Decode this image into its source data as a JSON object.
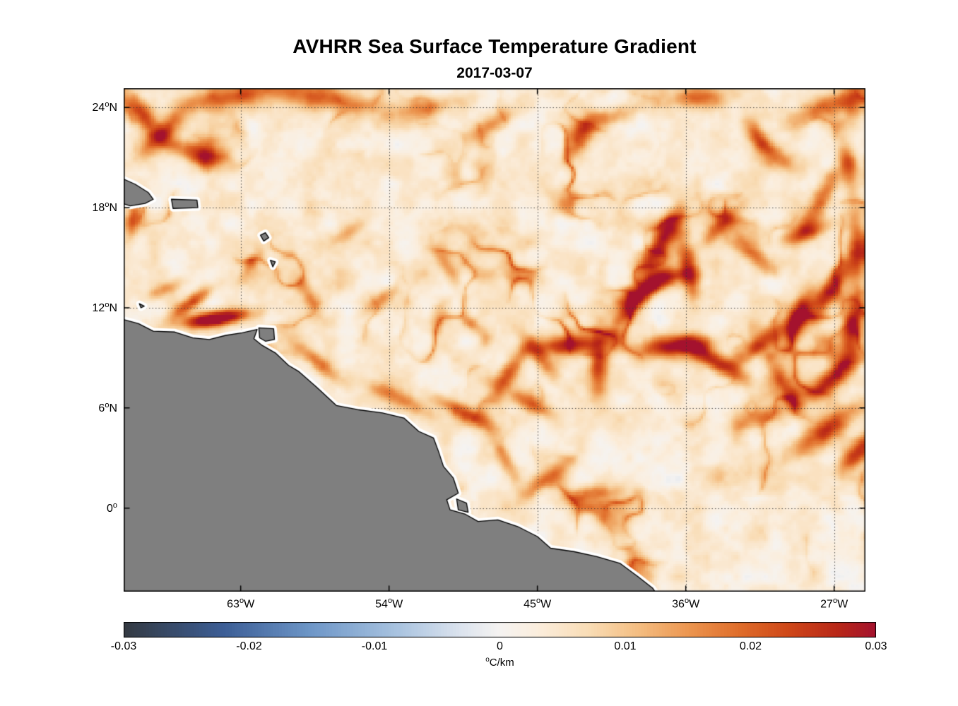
{
  "chart_data": {
    "type": "heatmap",
    "title": "AVHRR Sea Surface Temperature Gradient",
    "subtitle": "2017-03-07",
    "units": "°C/km",
    "value_range": [
      -0.03,
      0.03
    ],
    "lon_range_deg_east": [
      -70.1,
      -25.1
    ],
    "lat_range_deg_north": [
      -5.0,
      25.15
    ],
    "deg_symbol": "o",
    "grid_style": "dotted",
    "x_ticks": [
      {
        "lon": -63,
        "num": "63",
        "dir": "W"
      },
      {
        "lon": -54,
        "num": "54",
        "dir": "W"
      },
      {
        "lon": -45,
        "num": "45",
        "dir": "W"
      },
      {
        "lon": -36,
        "num": "36",
        "dir": "W"
      },
      {
        "lon": -27,
        "num": "27",
        "dir": "W"
      }
    ],
    "y_ticks": [
      {
        "lat": 24,
        "num": "24",
        "dir": "N"
      },
      {
        "lat": 18,
        "num": "18",
        "dir": "N"
      },
      {
        "lat": 12,
        "num": "12",
        "dir": "N"
      },
      {
        "lat": 6,
        "num": "6",
        "dir": "N"
      },
      {
        "lat": 0,
        "num": "0",
        "dir": ""
      }
    ],
    "colormap_stops": [
      [
        -0.03,
        "#343a42"
      ],
      [
        -0.022,
        "#3c5e96"
      ],
      [
        -0.015,
        "#6e97c8"
      ],
      [
        -0.008,
        "#aac4e0"
      ],
      [
        -0.003,
        "#dde4ee"
      ],
      [
        0.0,
        "#f5f3f1"
      ],
      [
        0.003,
        "#fbeedd"
      ],
      [
        0.007,
        "#f9ddb6"
      ],
      [
        0.011,
        "#f4be82"
      ],
      [
        0.015,
        "#ec9650"
      ],
      [
        0.019,
        "#e06e2b"
      ],
      [
        0.023,
        "#cf4718"
      ],
      [
        0.027,
        "#b82718"
      ],
      [
        0.03,
        "#a4122e"
      ]
    ],
    "background_field": {
      "base": 0.0035,
      "mottle_freq": 0.85,
      "mottle_amp": 0.011,
      "ridge_freq": 0.5,
      "ridge_amp": 0.018,
      "mask_freq": 0.28,
      "mask_lo": 0.45,
      "mask_gain": 2.5
    },
    "filaments": [
      [
        -69.0,
        23.6,
        130,
        1.2,
        0.45,
        0.022
      ],
      [
        -67.8,
        22.4,
        45,
        1.5,
        0.4,
        0.018
      ],
      [
        -65.6,
        21.2,
        160,
        1.6,
        0.4,
        0.015
      ],
      [
        -63.5,
        24.7,
        10,
        2.0,
        0.5,
        0.018
      ],
      [
        -58.0,
        24.6,
        170,
        2.2,
        0.5,
        0.017
      ],
      [
        -51.5,
        24.0,
        10,
        1.5,
        0.4,
        0.011
      ],
      [
        -47.8,
        23.0,
        35,
        1.2,
        0.38,
        0.013
      ],
      [
        -42.4,
        22.3,
        60,
        1.0,
        0.45,
        0.018
      ],
      [
        -40.6,
        23.4,
        20,
        1.2,
        0.4,
        0.013
      ],
      [
        -35.3,
        24.6,
        0,
        1.3,
        0.45,
        0.016
      ],
      [
        -31.6,
        22.1,
        120,
        1.2,
        0.35,
        0.012
      ],
      [
        -26.8,
        24.3,
        20,
        1.8,
        0.5,
        0.018
      ],
      [
        -69.6,
        17.2,
        80,
        1.0,
        0.32,
        0.013
      ],
      [
        -67.6,
        13.1,
        25,
        0.9,
        0.28,
        0.012
      ],
      [
        -66.0,
        12.3,
        35,
        1.1,
        0.3,
        0.02
      ],
      [
        -64.4,
        11.35,
        8,
        1.4,
        0.32,
        0.034
      ],
      [
        -62.5,
        14.5,
        60,
        0.9,
        0.28,
        0.008
      ],
      [
        -59.0,
        13.0,
        120,
        1.0,
        0.3,
        0.008
      ],
      [
        -58.3,
        8.7,
        140,
        1.2,
        0.32,
        0.015
      ],
      [
        -56.5,
        16.5,
        30,
        1.0,
        0.3,
        0.009
      ],
      [
        -54.5,
        12.5,
        40,
        1.1,
        0.3,
        0.009
      ],
      [
        -53.5,
        6.6,
        155,
        1.8,
        0.35,
        0.012
      ],
      [
        -50.5,
        14.5,
        120,
        1.1,
        0.3,
        0.009
      ],
      [
        -49.4,
        5.7,
        155,
        1.6,
        0.35,
        0.017
      ],
      [
        -47.0,
        3.0,
        120,
        1.2,
        0.3,
        0.012
      ],
      [
        -46.8,
        8.0,
        55,
        1.4,
        0.38,
        0.018
      ],
      [
        -45.5,
        6.3,
        150,
        1.2,
        0.35,
        0.014
      ],
      [
        -44.8,
        9.0,
        130,
        1.3,
        0.35,
        0.016
      ],
      [
        -44.6,
        1.6,
        35,
        1.4,
        0.35,
        0.013
      ],
      [
        -43.0,
        9.8,
        5,
        1.5,
        0.4,
        0.022
      ],
      [
        -41.8,
        0.8,
        10,
        1.4,
        0.35,
        0.012
      ],
      [
        -41.3,
        8.3,
        90,
        1.2,
        0.4,
        0.018
      ],
      [
        -39.3,
        12.0,
        45,
        1.2,
        0.35,
        0.018
      ],
      [
        -38.6,
        13.0,
        30,
        1.3,
        0.38,
        0.016
      ],
      [
        -37.3,
        16.2,
        60,
        1.6,
        0.45,
        0.026
      ],
      [
        -37.0,
        13.9,
        0,
        1.0,
        0.3,
        0.013
      ],
      [
        -36.6,
        9.7,
        5,
        1.5,
        0.45,
        0.026
      ],
      [
        -35.8,
        14.2,
        100,
        1.4,
        0.4,
        0.022
      ],
      [
        -34.2,
        8.8,
        150,
        1.5,
        0.4,
        0.024
      ],
      [
        -33.9,
        16.9,
        45,
        1.2,
        0.35,
        0.016
      ],
      [
        -31.9,
        15.2,
        140,
        1.2,
        0.35,
        0.014
      ],
      [
        -31.4,
        9.9,
        35,
        1.3,
        0.38,
        0.02
      ],
      [
        -31.0,
        5.6,
        20,
        1.2,
        0.35,
        0.012
      ],
      [
        -30.6,
        21.3,
        140,
        1.1,
        0.35,
        0.012
      ],
      [
        -29.8,
        7.0,
        120,
        1.2,
        0.35,
        0.016
      ],
      [
        -29.2,
        11.3,
        70,
        1.4,
        0.4,
        0.022
      ],
      [
        -28.8,
        16.5,
        20,
        1.2,
        0.35,
        0.016
      ],
      [
        -27.9,
        18.3,
        60,
        1.4,
        0.4,
        0.018
      ],
      [
        -27.6,
        4.6,
        35,
        1.8,
        0.5,
        0.022
      ],
      [
        -27.2,
        13.2,
        55,
        1.5,
        0.42,
        0.022
      ],
      [
        -27.0,
        7.9,
        40,
        1.4,
        0.4,
        0.022
      ],
      [
        -26.2,
        20.6,
        100,
        1.2,
        0.38,
        0.016
      ],
      [
        -25.9,
        10.8,
        80,
        1.4,
        0.4,
        0.02
      ],
      [
        -25.6,
        15.6,
        90,
        1.3,
        0.4,
        0.018
      ],
      [
        -25.5,
        3.4,
        45,
        1.4,
        0.45,
        0.02
      ]
    ],
    "land": {
      "color": "#7f7f7f",
      "coast_halo": "#ffffff",
      "outline": "#000000",
      "polygons": {
        "south_america": [
          [
            -70.3,
            11.35
          ],
          [
            -69.2,
            11.05
          ],
          [
            -68.3,
            10.6
          ],
          [
            -67.0,
            10.55
          ],
          [
            -65.9,
            10.2
          ],
          [
            -64.9,
            10.1
          ],
          [
            -63.9,
            10.35
          ],
          [
            -62.9,
            10.5
          ],
          [
            -62.0,
            10.7
          ],
          [
            -62.2,
            10.15
          ],
          [
            -61.7,
            9.75
          ],
          [
            -60.9,
            9.3
          ],
          [
            -60.1,
            8.55
          ],
          [
            -59.5,
            8.2
          ],
          [
            -58.4,
            7.25
          ],
          [
            -57.2,
            6.15
          ],
          [
            -55.9,
            5.9
          ],
          [
            -54.4,
            5.7
          ],
          [
            -53.1,
            5.4
          ],
          [
            -52.2,
            4.6
          ],
          [
            -51.3,
            4.2
          ],
          [
            -51.0,
            3.4
          ],
          [
            -50.7,
            2.5
          ],
          [
            -50.1,
            1.8
          ],
          [
            -49.8,
            0.9
          ],
          [
            -50.5,
            0.5
          ],
          [
            -50.3,
            -0.1
          ],
          [
            -49.4,
            -0.35
          ],
          [
            -48.6,
            -0.8
          ],
          [
            -47.4,
            -0.7
          ],
          [
            -46.2,
            -1.1
          ],
          [
            -45.0,
            -1.7
          ],
          [
            -44.2,
            -2.4
          ],
          [
            -42.8,
            -2.6
          ],
          [
            -41.4,
            -2.9
          ],
          [
            -40.0,
            -3.3
          ],
          [
            -38.9,
            -4.1
          ],
          [
            -38.0,
            -4.8
          ],
          [
            -37.6,
            -5.4
          ],
          [
            -70.3,
            -5.4
          ]
        ],
        "marajo": [
          [
            -49.9,
            0.55
          ],
          [
            -49.3,
            0.3
          ],
          [
            -49.2,
            -0.25
          ],
          [
            -49.8,
            -0.1
          ]
        ],
        "hispaniola_east": [
          [
            -70.3,
            19.8
          ],
          [
            -69.4,
            19.4
          ],
          [
            -68.6,
            18.9
          ],
          [
            -68.3,
            18.5
          ],
          [
            -68.8,
            18.25
          ],
          [
            -69.7,
            18.1
          ],
          [
            -70.3,
            18.3
          ]
        ],
        "puerto_rico": [
          [
            -67.2,
            18.5
          ],
          [
            -65.65,
            18.45
          ],
          [
            -65.6,
            18.0
          ],
          [
            -67.1,
            17.95
          ]
        ],
        "guadeloupe": [
          [
            -61.8,
            16.35
          ],
          [
            -61.5,
            16.5
          ],
          [
            -61.3,
            16.2
          ],
          [
            -61.6,
            16.0
          ]
        ],
        "martinique": [
          [
            -61.2,
            14.85
          ],
          [
            -60.9,
            14.75
          ],
          [
            -61.05,
            14.45
          ]
        ],
        "trinidad": [
          [
            -61.9,
            10.8
          ],
          [
            -61.0,
            10.75
          ],
          [
            -60.95,
            10.1
          ],
          [
            -61.5,
            10.0
          ],
          [
            -61.85,
            10.2
          ]
        ],
        "curacao": [
          [
            -69.15,
            12.25
          ],
          [
            -68.85,
            12.1
          ],
          [
            -69.05,
            12.0
          ]
        ]
      }
    }
  },
  "colorbar": {
    "min": -0.03,
    "max": 0.03,
    "tick_values": [
      -0.03,
      -0.02,
      -0.01,
      0,
      0.01,
      0.02,
      0.03
    ],
    "tick_labels": [
      "-0.03",
      "-0.02",
      "-0.01",
      "0",
      "0.01",
      "0.02",
      "0.03"
    ],
    "unit_sup": "o",
    "unit_text": "C/km"
  }
}
